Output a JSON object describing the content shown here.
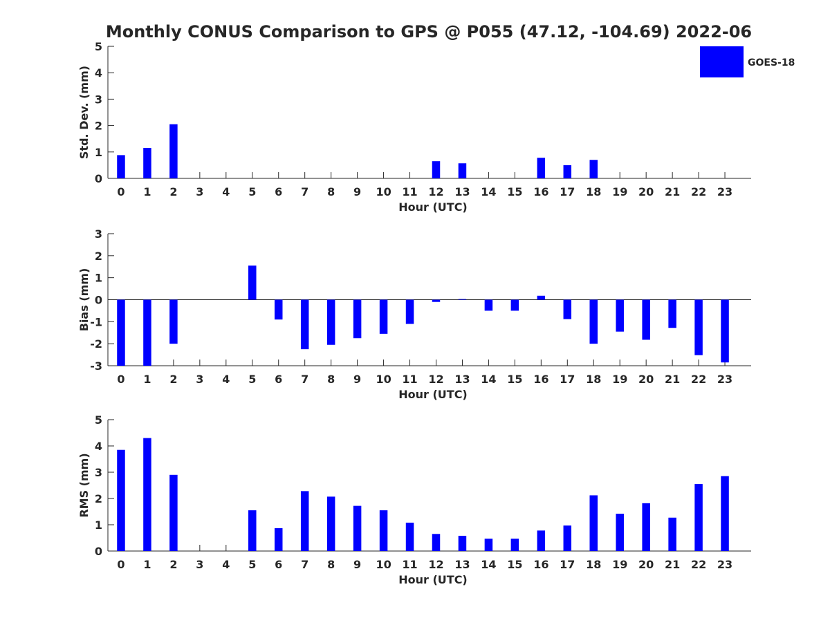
{
  "title": "Monthly CONUS Comparison to GPS @ P055 (47.12, -104.69) 2022-06",
  "legend": {
    "label": "GOES-18",
    "color": "#0000ff",
    "placement": "top-right"
  },
  "chart_data": [
    {
      "type": "bar",
      "xlabel": "Hour (UTC)",
      "ylabel": "Std. Dev. (mm)",
      "ylim": [
        0,
        5
      ],
      "yticks": [
        0,
        1,
        2,
        3,
        4,
        5
      ],
      "categories": [
        "0",
        "1",
        "2",
        "3",
        "4",
        "5",
        "6",
        "7",
        "8",
        "9",
        "10",
        "11",
        "12",
        "13",
        "14",
        "15",
        "16",
        "17",
        "18",
        "19",
        "20",
        "21",
        "22",
        "23"
      ],
      "series": [
        {
          "name": "GOES-18",
          "color": "#0000ff",
          "values": [
            0.88,
            1.15,
            2.05,
            0,
            0,
            0,
            0,
            0,
            0,
            0,
            0,
            0,
            0.65,
            0.57,
            0,
            0,
            0.78,
            0.5,
            0.7,
            0,
            0,
            0,
            0,
            0
          ]
        }
      ]
    },
    {
      "type": "bar",
      "xlabel": "Hour (UTC)",
      "ylabel": "Bias (mm)",
      "ylim": [
        -3,
        3
      ],
      "yticks": [
        -3,
        -2,
        -1,
        0,
        1,
        2,
        3
      ],
      "categories": [
        "0",
        "1",
        "2",
        "3",
        "4",
        "5",
        "6",
        "7",
        "8",
        "9",
        "10",
        "11",
        "12",
        "13",
        "14",
        "15",
        "16",
        "17",
        "18",
        "19",
        "20",
        "21",
        "22",
        "23"
      ],
      "series": [
        {
          "name": "GOES-18",
          "color": "#0000ff",
          "values": [
            -3.0,
            -3.0,
            -2.0,
            0,
            0,
            1.55,
            -0.9,
            -2.25,
            -2.05,
            -1.75,
            -1.55,
            -1.1,
            -0.1,
            0.03,
            -0.5,
            -0.5,
            0.18,
            -0.88,
            -2.0,
            -1.45,
            -1.82,
            -1.28,
            -2.52,
            -2.85
          ]
        }
      ]
    },
    {
      "type": "bar",
      "xlabel": "Hour (UTC)",
      "ylabel": "RMS (mm)",
      "ylim": [
        0,
        5
      ],
      "yticks": [
        0,
        1,
        2,
        3,
        4,
        5
      ],
      "categories": [
        "0",
        "1",
        "2",
        "3",
        "4",
        "5",
        "6",
        "7",
        "8",
        "9",
        "10",
        "11",
        "12",
        "13",
        "14",
        "15",
        "16",
        "17",
        "18",
        "19",
        "20",
        "21",
        "22",
        "23"
      ],
      "series": [
        {
          "name": "GOES-18",
          "color": "#0000ff",
          "values": [
            3.85,
            4.3,
            2.9,
            0,
            0,
            1.55,
            0.87,
            2.28,
            2.07,
            1.72,
            1.55,
            1.08,
            0.65,
            0.58,
            0.47,
            0.47,
            0.78,
            0.97,
            2.12,
            1.42,
            1.82,
            1.27,
            2.55,
            2.85
          ]
        }
      ]
    }
  ]
}
